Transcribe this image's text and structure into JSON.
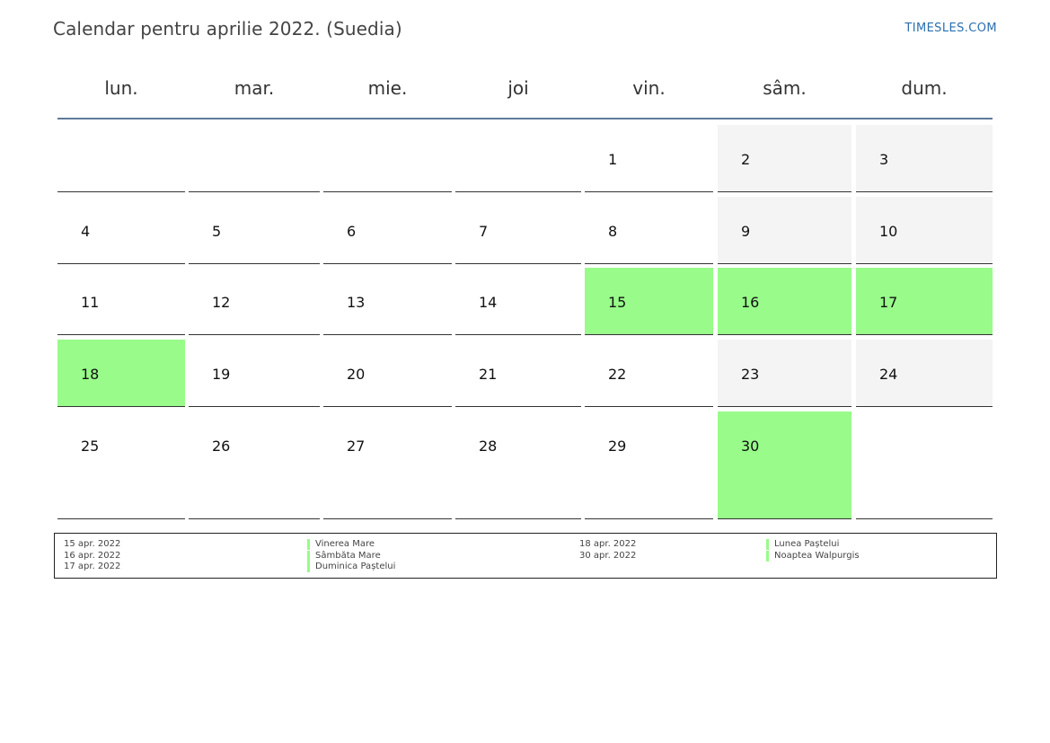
{
  "header": {
    "title": "Calendar pentru aprilie 2022. (Suedia)",
    "site": "TIMESLES.COM"
  },
  "weekdays": [
    "lun.",
    "mar.",
    "mie.",
    "joi",
    "vin.",
    "sâm.",
    "dum."
  ],
  "colors": {
    "holiday": "#98fb8a",
    "weekend": "#f4f4f4",
    "header_rule": "#5e7a99",
    "site_link": "#2a6fb0"
  },
  "weeks": [
    [
      {
        "day": "",
        "type": "normal"
      },
      {
        "day": "",
        "type": "normal"
      },
      {
        "day": "",
        "type": "normal"
      },
      {
        "day": "",
        "type": "normal"
      },
      {
        "day": "1",
        "type": "normal"
      },
      {
        "day": "2",
        "type": "weekend"
      },
      {
        "day": "3",
        "type": "weekend"
      }
    ],
    [
      {
        "day": "4",
        "type": "normal"
      },
      {
        "day": "5",
        "type": "normal"
      },
      {
        "day": "6",
        "type": "normal"
      },
      {
        "day": "7",
        "type": "normal"
      },
      {
        "day": "8",
        "type": "normal"
      },
      {
        "day": "9",
        "type": "weekend"
      },
      {
        "day": "10",
        "type": "weekend"
      }
    ],
    [
      {
        "day": "11",
        "type": "normal"
      },
      {
        "day": "12",
        "type": "normal"
      },
      {
        "day": "13",
        "type": "normal"
      },
      {
        "day": "14",
        "type": "normal"
      },
      {
        "day": "15",
        "type": "holiday"
      },
      {
        "day": "16",
        "type": "holiday"
      },
      {
        "day": "17",
        "type": "holiday"
      }
    ],
    [
      {
        "day": "18",
        "type": "holiday"
      },
      {
        "day": "19",
        "type": "normal"
      },
      {
        "day": "20",
        "type": "normal"
      },
      {
        "day": "21",
        "type": "normal"
      },
      {
        "day": "22",
        "type": "normal"
      },
      {
        "day": "23",
        "type": "weekend"
      },
      {
        "day": "24",
        "type": "weekend"
      }
    ],
    [
      {
        "day": "25",
        "type": "normal"
      },
      {
        "day": "26",
        "type": "normal"
      },
      {
        "day": "27",
        "type": "normal"
      },
      {
        "day": "28",
        "type": "normal"
      },
      {
        "day": "29",
        "type": "normal"
      },
      {
        "day": "30",
        "type": "holiday"
      },
      {
        "day": "",
        "type": "normal"
      }
    ]
  ],
  "holidays": [
    {
      "date": "15 apr. 2022",
      "name": "Vinerea Mare"
    },
    {
      "date": "16 apr. 2022",
      "name": "Sâmbăta Mare"
    },
    {
      "date": "17 apr. 2022",
      "name": "Duminica Paștelui"
    },
    {
      "date": "18 apr. 2022",
      "name": "Lunea Paștelui"
    },
    {
      "date": "30 apr. 2022",
      "name": "Noaptea Walpurgis"
    }
  ]
}
